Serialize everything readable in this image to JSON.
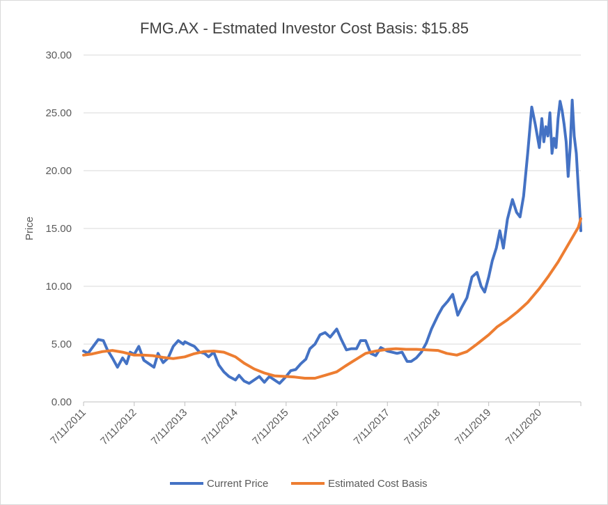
{
  "chart_data": {
    "type": "line",
    "title": "FMG.AX - Estmated Investor Cost Basis:  $15.85",
    "xlabel": "",
    "ylabel": "Price",
    "ylim": [
      0,
      30
    ],
    "y_ticks": [
      "0.00",
      "5.00",
      "10.00",
      "15.00",
      "20.00",
      "25.00",
      "30.00"
    ],
    "y_tick_values": [
      0,
      5,
      10,
      15,
      20,
      25,
      30
    ],
    "x_ticks": [
      "7/11/2011",
      "7/11/2012",
      "7/11/2013",
      "7/11/2014",
      "7/11/2015",
      "7/11/2016",
      "7/11/2017",
      "7/11/2018",
      "7/11/2019",
      "7/11/2020"
    ],
    "x_tick_values": [
      2011.53,
      2012.53,
      2013.53,
      2014.53,
      2015.53,
      2016.53,
      2017.53,
      2018.53,
      2019.53,
      2020.53
    ],
    "xlim": [
      2011.53,
      2021.35
    ],
    "grid": true,
    "legend": "bottom",
    "series": [
      {
        "name": "Current Price",
        "color": "#4472C4",
        "x": [
          2011.53,
          2011.62,
          2011.72,
          2011.82,
          2011.92,
          2012.0,
          2012.1,
          2012.2,
          2012.3,
          2012.38,
          2012.45,
          2012.53,
          2012.62,
          2012.72,
          2012.82,
          2012.92,
          2013.0,
          2013.1,
          2013.2,
          2013.3,
          2013.4,
          2013.5,
          2013.53,
          2013.62,
          2013.72,
          2013.82,
          2013.92,
          2014.0,
          2014.1,
          2014.2,
          2014.3,
          2014.4,
          2014.53,
          2014.6,
          2014.7,
          2014.8,
          2014.9,
          2015.0,
          2015.1,
          2015.2,
          2015.3,
          2015.4,
          2015.53,
          2015.62,
          2015.72,
          2015.82,
          2015.92,
          2016.0,
          2016.1,
          2016.2,
          2016.3,
          2016.4,
          2016.53,
          2016.62,
          2016.72,
          2016.82,
          2016.92,
          2017.0,
          2017.1,
          2017.2,
          2017.3,
          2017.4,
          2017.53,
          2017.62,
          2017.72,
          2017.82,
          2017.92,
          2018.0,
          2018.1,
          2018.2,
          2018.3,
          2018.4,
          2018.53,
          2018.62,
          2018.72,
          2018.82,
          2018.92,
          2019.0,
          2019.1,
          2019.2,
          2019.3,
          2019.38,
          2019.45,
          2019.53,
          2019.6,
          2019.68,
          2019.75,
          2019.82,
          2019.9,
          2020.0,
          2020.08,
          2020.15,
          2020.22,
          2020.3,
          2020.38,
          2020.45,
          2020.53,
          2020.58,
          2020.62,
          2020.66,
          2020.7,
          2020.74,
          2020.78,
          2020.82,
          2020.86,
          2020.9,
          2020.94,
          2020.98,
          2021.02,
          2021.06,
          2021.1,
          2021.14,
          2021.18,
          2021.22,
          2021.26,
          2021.3,
          2021.33,
          2021.35
        ],
        "values": [
          4.4,
          4.2,
          4.8,
          5.4,
          5.3,
          4.5,
          3.8,
          3.0,
          3.8,
          3.3,
          4.3,
          4.1,
          4.8,
          3.6,
          3.3,
          3.0,
          4.2,
          3.4,
          3.8,
          4.8,
          5.3,
          5.0,
          5.2,
          5.0,
          4.8,
          4.3,
          4.2,
          3.9,
          4.3,
          3.2,
          2.6,
          2.2,
          1.9,
          2.3,
          1.8,
          1.6,
          1.9,
          2.2,
          1.7,
          2.2,
          1.9,
          1.6,
          2.2,
          2.7,
          2.8,
          3.3,
          3.7,
          4.6,
          5.0,
          5.8,
          6.0,
          5.6,
          6.3,
          5.4,
          4.5,
          4.6,
          4.6,
          5.3,
          5.3,
          4.2,
          4.0,
          4.7,
          4.4,
          4.3,
          4.2,
          4.3,
          3.5,
          3.5,
          3.8,
          4.3,
          5.1,
          6.3,
          7.5,
          8.2,
          8.7,
          9.3,
          7.5,
          8.2,
          9.0,
          10.8,
          11.2,
          10.0,
          9.5,
          10.8,
          12.2,
          13.3,
          14.8,
          13.3,
          15.8,
          17.5,
          16.4,
          16.0,
          17.8,
          21.5,
          25.5,
          24.0,
          22.0,
          24.5,
          22.5,
          23.8,
          23.0,
          25.0,
          21.5,
          22.8,
          22.0,
          24.5,
          26.0,
          25.2,
          24.0,
          22.5,
          19.5,
          22.0,
          26.1,
          23.0,
          21.5,
          18.5,
          16.5,
          14.8
        ]
      },
      {
        "name": "Estimated Cost Basis",
        "color": "#ED7D31",
        "x": [
          2011.53,
          2011.7,
          2011.9,
          2012.1,
          2012.3,
          2012.53,
          2012.7,
          2012.9,
          2013.1,
          2013.3,
          2013.53,
          2013.7,
          2013.9,
          2014.1,
          2014.3,
          2014.53,
          2014.7,
          2014.9,
          2015.1,
          2015.3,
          2015.53,
          2015.7,
          2015.9,
          2016.1,
          2016.3,
          2016.53,
          2016.7,
          2016.9,
          2017.1,
          2017.3,
          2017.53,
          2017.7,
          2017.9,
          2018.1,
          2018.3,
          2018.53,
          2018.7,
          2018.9,
          2019.1,
          2019.3,
          2019.53,
          2019.7,
          2019.9,
          2020.1,
          2020.3,
          2020.53,
          2020.7,
          2020.9,
          2021.1,
          2021.3,
          2021.35
        ],
        "values": [
          4.05,
          4.15,
          4.35,
          4.45,
          4.3,
          4.05,
          4.05,
          4.0,
          3.85,
          3.75,
          3.9,
          4.15,
          4.35,
          4.4,
          4.3,
          3.9,
          3.35,
          2.85,
          2.5,
          2.25,
          2.2,
          2.15,
          2.05,
          2.05,
          2.3,
          2.6,
          3.1,
          3.65,
          4.2,
          4.4,
          4.55,
          4.6,
          4.55,
          4.55,
          4.5,
          4.45,
          4.2,
          4.05,
          4.35,
          5.0,
          5.8,
          6.5,
          7.1,
          7.8,
          8.6,
          9.8,
          10.8,
          12.1,
          13.6,
          15.1,
          15.85
        ]
      }
    ]
  }
}
